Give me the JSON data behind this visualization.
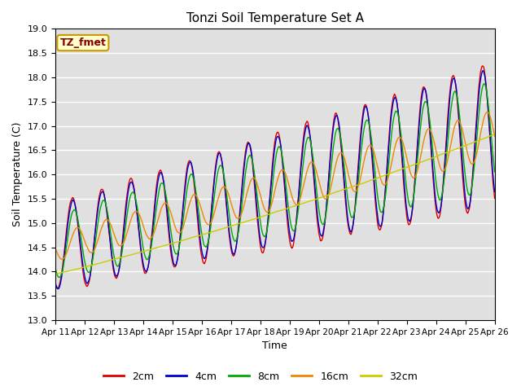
{
  "title": "Tonzi Soil Temperature Set A",
  "xlabel": "Time",
  "ylabel": "Soil Temperature (C)",
  "ylim": [
    13.0,
    19.0
  ],
  "yticks": [
    13.0,
    13.5,
    14.0,
    14.5,
    15.0,
    15.5,
    16.0,
    16.5,
    17.0,
    17.5,
    18.0,
    18.5,
    19.0
  ],
  "legend_label": "TZ_fmet",
  "series_labels": [
    "2cm",
    "4cm",
    "8cm",
    "16cm",
    "32cm"
  ],
  "series_colors": [
    "#dd0000",
    "#0000cc",
    "#00aa00",
    "#ee8800",
    "#cccc00"
  ],
  "background_color": "#e0e0e0",
  "n_points": 720,
  "xtick_labels": [
    "Apr 11",
    "Apr 12",
    "Apr 13",
    "Apr 14",
    "Apr 15",
    "Apr 16",
    "Apr 17",
    "Apr 18",
    "Apr 19",
    "Apr 20",
    "Apr 21",
    "Apr 22",
    "Apr 23",
    "Apr 24",
    "Apr 25",
    "Apr 26"
  ]
}
